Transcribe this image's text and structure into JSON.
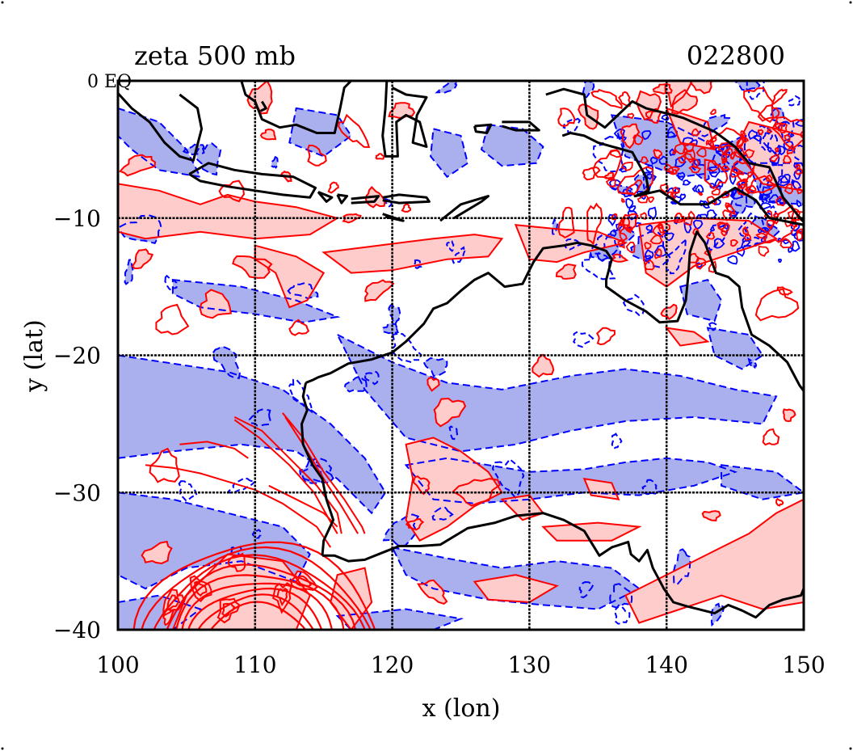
{
  "title_left": "zeta 500 mb",
  "title_right": "022800",
  "corner_label": "0 EQ",
  "xlabel": "x (lon)",
  "ylabel": "y (lat)",
  "colors": {
    "positive_line": "#ff0000",
    "positive_fill": "#ffcccc",
    "negative_line": "#0000ff",
    "negative_fill": "#aab0ee",
    "coast": "#000000",
    "grid": "#000000"
  },
  "chart_data": {
    "type": "heatmap",
    "description_field": "500 mb relative vorticity contours (red solid positive, blue dashed negative)",
    "xlim": [
      100,
      150
    ],
    "ylim": [
      -40,
      0
    ],
    "xticks": [
      100,
      110,
      120,
      130,
      140,
      150
    ],
    "yticks": [
      0,
      -10,
      -20,
      -30,
      -40
    ],
    "xtick_labels": [
      "100",
      "110",
      "120",
      "130",
      "140",
      "150"
    ],
    "ytick_labels": [
      "0",
      "−10",
      "−20",
      "−30",
      "−40"
    ],
    "grid": true,
    "gridlines_lon": [
      110,
      120,
      130,
      140
    ],
    "gridlines_lat": [
      -10,
      -20,
      -30
    ],
    "coastline_australia": [
      [
        113.7,
        -22.0
      ],
      [
        114.2,
        -21.8
      ],
      [
        114.6,
        -21.6
      ],
      [
        115.5,
        -21.3
      ],
      [
        116.8,
        -20.6
      ],
      [
        118.5,
        -20.3
      ],
      [
        120.0,
        -19.8
      ],
      [
        121.0,
        -19.0
      ],
      [
        122.3,
        -17.7
      ],
      [
        123.0,
        -16.6
      ],
      [
        124.0,
        -16.2
      ],
      [
        125.0,
        -15.3
      ],
      [
        126.0,
        -14.5
      ],
      [
        127.0,
        -14.0
      ],
      [
        128.2,
        -15.0
      ],
      [
        129.5,
        -14.8
      ],
      [
        130.3,
        -13.2
      ],
      [
        131.0,
        -12.2
      ],
      [
        132.5,
        -12.0
      ],
      [
        133.5,
        -11.8
      ],
      [
        134.5,
        -12.0
      ],
      [
        135.6,
        -12.4
      ],
      [
        136.0,
        -13.0
      ],
      [
        135.6,
        -14.5
      ],
      [
        135.6,
        -15.0
      ],
      [
        137.0,
        -16.0
      ],
      [
        138.5,
        -16.8
      ],
      [
        139.5,
        -17.6
      ],
      [
        140.8,
        -17.5
      ],
      [
        141.4,
        -16.0
      ],
      [
        141.6,
        -14.0
      ],
      [
        141.7,
        -12.5
      ],
      [
        142.2,
        -11.0
      ],
      [
        142.8,
        -11.8
      ],
      [
        143.6,
        -14.0
      ],
      [
        144.5,
        -14.3
      ],
      [
        145.3,
        -15.0
      ],
      [
        145.5,
        -16.5
      ],
      [
        146.2,
        -18.5
      ],
      [
        147.5,
        -19.3
      ],
      [
        148.8,
        -20.5
      ],
      [
        149.7,
        -22.2
      ],
      [
        150.0,
        -22.6
      ],
      [
        150.0,
        -40.0
      ]
    ],
    "coastline_south": [
      [
        114.9,
        -34.6
      ],
      [
        115.8,
        -34.6
      ],
      [
        116.8,
        -35.0
      ],
      [
        118.0,
        -34.9
      ],
      [
        119.5,
        -34.3
      ],
      [
        120.5,
        -33.9
      ],
      [
        122.0,
        -33.9
      ],
      [
        123.5,
        -33.8
      ],
      [
        124.0,
        -33.5
      ],
      [
        125.5,
        -32.6
      ],
      [
        127.5,
        -32.2
      ],
      [
        129.0,
        -31.7
      ],
      [
        131.0,
        -31.5
      ],
      [
        132.5,
        -32.0
      ],
      [
        134.0,
        -32.8
      ],
      [
        135.1,
        -34.6
      ],
      [
        136.0,
        -34.0
      ],
      [
        137.2,
        -33.6
      ],
      [
        137.4,
        -34.5
      ],
      [
        138.0,
        -35.0
      ],
      [
        138.6,
        -34.2
      ],
      [
        139.0,
        -35.5
      ],
      [
        139.8,
        -37.0
      ],
      [
        140.5,
        -38.0
      ],
      [
        141.5,
        -38.3
      ],
      [
        143.5,
        -38.8
      ],
      [
        144.5,
        -38.2
      ],
      [
        145.5,
        -38.6
      ],
      [
        146.5,
        -39.1
      ],
      [
        147.5,
        -38.2
      ],
      [
        148.5,
        -37.8
      ],
      [
        149.8,
        -37.5
      ],
      [
        150.0,
        -37.0
      ]
    ],
    "coastline_west": [
      [
        114.9,
        -34.6
      ],
      [
        115.0,
        -33.5
      ],
      [
        115.7,
        -32.0
      ],
      [
        115.2,
        -30.5
      ],
      [
        114.9,
        -29.0
      ],
      [
        114.2,
        -28.0
      ],
      [
        113.5,
        -26.5
      ],
      [
        113.4,
        -25.0
      ],
      [
        113.8,
        -24.0
      ],
      [
        113.5,
        -23.0
      ],
      [
        113.7,
        -22.0
      ]
    ],
    "islands": [
      [
        [
          104.5,
          -1.0
        ],
        [
          105.8,
          -2.0
        ],
        [
          106.1,
          -3.5
        ],
        [
          105.5,
          -5.8
        ],
        [
          104.5,
          -5.5
        ],
        [
          103.4,
          -4.5
        ],
        [
          102.3,
          -3.0
        ],
        [
          101.0,
          -2.0
        ],
        [
          100.0,
          -0.9
        ]
      ],
      [
        [
          105.2,
          -6.8
        ],
        [
          106.6,
          -6.0
        ],
        [
          108.5,
          -6.5
        ],
        [
          110.5,
          -6.8
        ],
        [
          112.8,
          -7.0
        ],
        [
          114.4,
          -7.8
        ],
        [
          114.0,
          -8.5
        ],
        [
          112.0,
          -8.3
        ],
        [
          110.0,
          -8.0
        ],
        [
          108.0,
          -7.7
        ],
        [
          106.0,
          -7.3
        ],
        [
          105.2,
          -6.8
        ]
      ],
      [
        [
          114.6,
          -8.1
        ],
        [
          115.6,
          -8.5
        ],
        [
          115.2,
          -8.8
        ],
        [
          114.6,
          -8.1
        ]
      ],
      [
        [
          116.0,
          -8.3
        ],
        [
          116.7,
          -8.4
        ],
        [
          116.3,
          -8.9
        ],
        [
          116.0,
          -8.3
        ]
      ],
      [
        [
          117.0,
          -8.6
        ],
        [
          119.0,
          -8.4
        ],
        [
          118.7,
          -8.8
        ],
        [
          117.0,
          -8.9
        ]
      ],
      [
        [
          119.3,
          -8.5
        ],
        [
          120.5,
          -8.3
        ],
        [
          122.5,
          -8.5
        ],
        [
          122.7,
          -8.8
        ],
        [
          120.5,
          -8.9
        ],
        [
          119.3,
          -8.7
        ]
      ],
      [
        [
          119.3,
          -9.7
        ],
        [
          120.8,
          -10.2
        ],
        [
          119.5,
          -9.9
        ]
      ],
      [
        [
          123.5,
          -10.2
        ],
        [
          125.0,
          -9.0
        ],
        [
          127.0,
          -8.4
        ],
        [
          126.5,
          -8.8
        ],
        [
          124.5,
          -10.0
        ]
      ],
      [
        [
          109.0,
          0.0
        ],
        [
          109.3,
          -1.0
        ],
        [
          110.0,
          -1.5
        ],
        [
          110.5,
          -2.8
        ],
        [
          111.8,
          -3.4
        ],
        [
          113.0,
          -3.2
        ],
        [
          114.5,
          -3.8
        ],
        [
          115.8,
          -3.8
        ],
        [
          116.2,
          -2.0
        ],
        [
          116.5,
          -0.5
        ],
        [
          117.0,
          0.0
        ]
      ],
      [
        [
          119.6,
          0.0
        ],
        [
          119.5,
          -2.0
        ],
        [
          119.3,
          -4.0
        ],
        [
          119.5,
          -5.5
        ],
        [
          120.4,
          -5.5
        ],
        [
          120.3,
          -3.0
        ],
        [
          121.0,
          -2.5
        ],
        [
          122.0,
          -3.0
        ],
        [
          122.5,
          -4.8
        ],
        [
          121.5,
          -4.5
        ],
        [
          121.8,
          -2.5
        ],
        [
          122.5,
          -1.2
        ],
        [
          121.0,
          -1.0
        ],
        [
          120.0,
          -0.5
        ]
      ],
      [
        [
          126.0,
          -3.3
        ],
        [
          127.2,
          -3.2
        ],
        [
          126.9,
          -3.8
        ],
        [
          126.1,
          -3.7
        ],
        [
          126.0,
          -3.3
        ]
      ],
      [
        [
          128.0,
          -3.0
        ],
        [
          130.0,
          -3.0
        ],
        [
          130.7,
          -3.6
        ],
        [
          129.0,
          -3.6
        ],
        [
          128.0,
          -3.3
        ]
      ],
      [
        [
          131.2,
          -1.0
        ],
        [
          132.5,
          -0.6
        ],
        [
          134.0,
          -1.0
        ],
        [
          134.2,
          -2.5
        ],
        [
          135.5,
          -3.4
        ],
        [
          137.5,
          -1.5
        ],
        [
          138.5,
          -2.0
        ],
        [
          140.5,
          -2.5
        ],
        [
          141.2,
          -2.7
        ],
        [
          143.5,
          -3.7
        ],
        [
          145.0,
          -4.8
        ],
        [
          146.0,
          -6.0
        ],
        [
          147.5,
          -6.3
        ],
        [
          148.5,
          -8.5
        ],
        [
          150.0,
          -10.3
        ]
      ],
      [
        [
          132.4,
          -4.0
        ],
        [
          133.0,
          -3.8
        ],
        [
          134.0,
          -4.0
        ],
        [
          135.0,
          -4.5
        ],
        [
          137.5,
          -5.2
        ],
        [
          138.5,
          -7.0
        ],
        [
          138.7,
          -8.0
        ],
        [
          137.7,
          -8.4
        ],
        [
          139.5,
          -8.0
        ],
        [
          141.0,
          -9.0
        ],
        [
          143.0,
          -9.0
        ],
        [
          145.0,
          -7.8
        ],
        [
          146.5,
          -8.7
        ],
        [
          147.5,
          -10.0
        ],
        [
          148.5,
          -10.2
        ],
        [
          150.0,
          -10.5
        ]
      ],
      [
        [
          110.5,
          -1.5
        ],
        [
          110.8,
          -2.0
        ],
        [
          110.4,
          -2.2
        ]
      ]
    ]
  }
}
